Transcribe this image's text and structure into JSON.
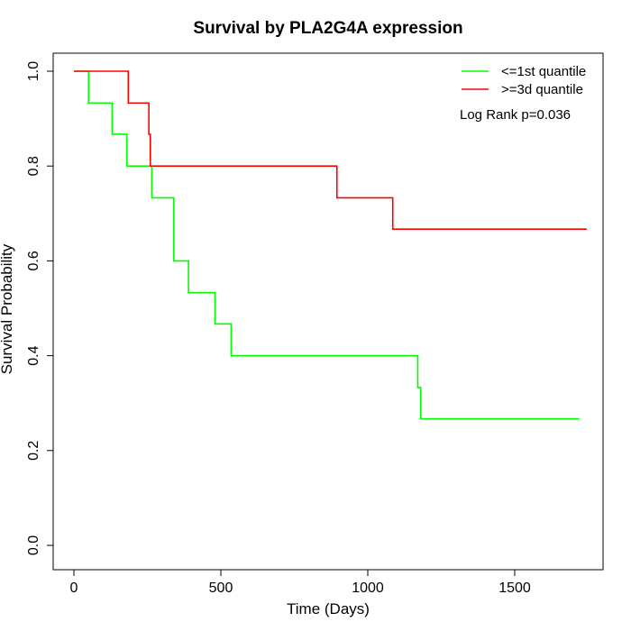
{
  "chart_data": {
    "type": "line",
    "title": "Survival by PLA2G4A expression",
    "xlabel": "Time (Days)",
    "ylabel": "Survival Probability",
    "xlim": [
      0,
      1750
    ],
    "ylim": [
      0,
      1.0
    ],
    "x_ticks": [
      0,
      500,
      1000,
      1500
    ],
    "y_ticks": [
      0.0,
      0.2,
      0.4,
      0.6,
      0.8,
      1.0
    ],
    "x_tick_labels": [
      "0",
      "500",
      "1000",
      "1500"
    ],
    "y_tick_labels": [
      "0.0",
      "0.2",
      "0.4",
      "0.6",
      "0.8",
      "1.0"
    ],
    "grid": false,
    "legend_position": "top-right",
    "annotation": "Log Rank p=0.036",
    "series": [
      {
        "name": "<=1st quantile",
        "color": "#00ff00",
        "step_points": [
          [
            0,
            1.0
          ],
          [
            50,
            0.933
          ],
          [
            130,
            0.867
          ],
          [
            180,
            0.8
          ],
          [
            265,
            0.733
          ],
          [
            340,
            0.6
          ],
          [
            390,
            0.533
          ],
          [
            480,
            0.467
          ],
          [
            535,
            0.4
          ],
          [
            1170,
            0.333
          ],
          [
            1180,
            0.267
          ],
          [
            1720,
            0.267
          ]
        ]
      },
      {
        "name": ">=3d quantile",
        "color": "#ff0000",
        "step_points": [
          [
            0,
            1.0
          ],
          [
            185,
            0.933
          ],
          [
            255,
            0.867
          ],
          [
            260,
            0.8
          ],
          [
            895,
            0.733
          ],
          [
            1085,
            0.667
          ],
          [
            1745,
            0.667
          ]
        ]
      }
    ]
  }
}
